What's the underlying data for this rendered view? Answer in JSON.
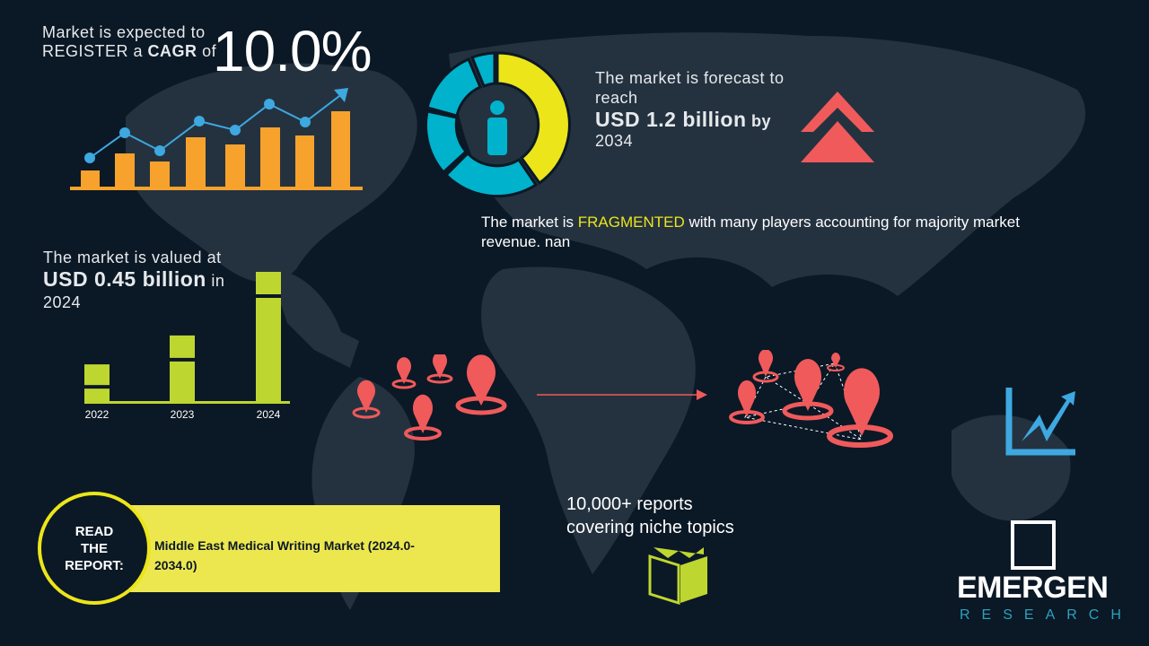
{
  "cagr": {
    "line1": "Market is expected to",
    "line2_prefix": "REGISTER a",
    "line2_bold": "CAGR",
    "line2_suffix": "of",
    "value": "10.0%"
  },
  "forecast": {
    "line1": "The market is forecast to",
    "line2": "reach",
    "value": "USD 1.2 billion",
    "by": "by",
    "year": "2034"
  },
  "fragmented": {
    "prefix": "The market is",
    "highlight": "FRAGMENTED",
    "suffix": "with many players accounting for majority market",
    "line2": "revenue. nan"
  },
  "valued": {
    "line1": "The market is valued at",
    "value": "USD 0.45 billion",
    "in": "in",
    "year": "2024"
  },
  "chart_data": {
    "type": "bar",
    "categories": [
      "2022",
      "2023",
      "2024"
    ],
    "values": [
      0.13,
      0.23,
      0.45
    ],
    "title": "",
    "xlabel": "",
    "ylabel": ""
  },
  "reports": {
    "line1": "10,000+ reports",
    "line2": "covering niche topics"
  },
  "read_report": {
    "badge": [
      "READ",
      "THE",
      "REPORT:"
    ],
    "title": "Middle East Medical Writing Market (2024.0-2034.0)"
  },
  "logo": {
    "name": "EMERGEN",
    "sub": "RESEARCH"
  },
  "colors": {
    "background": "#0b1826",
    "map": "#243240",
    "yellow": "#ece51a",
    "green": "#bed630",
    "orange": "#f7a22c",
    "blue": "#3ea8e0",
    "cyan": "#00b2cc",
    "red": "#f05a5b"
  }
}
